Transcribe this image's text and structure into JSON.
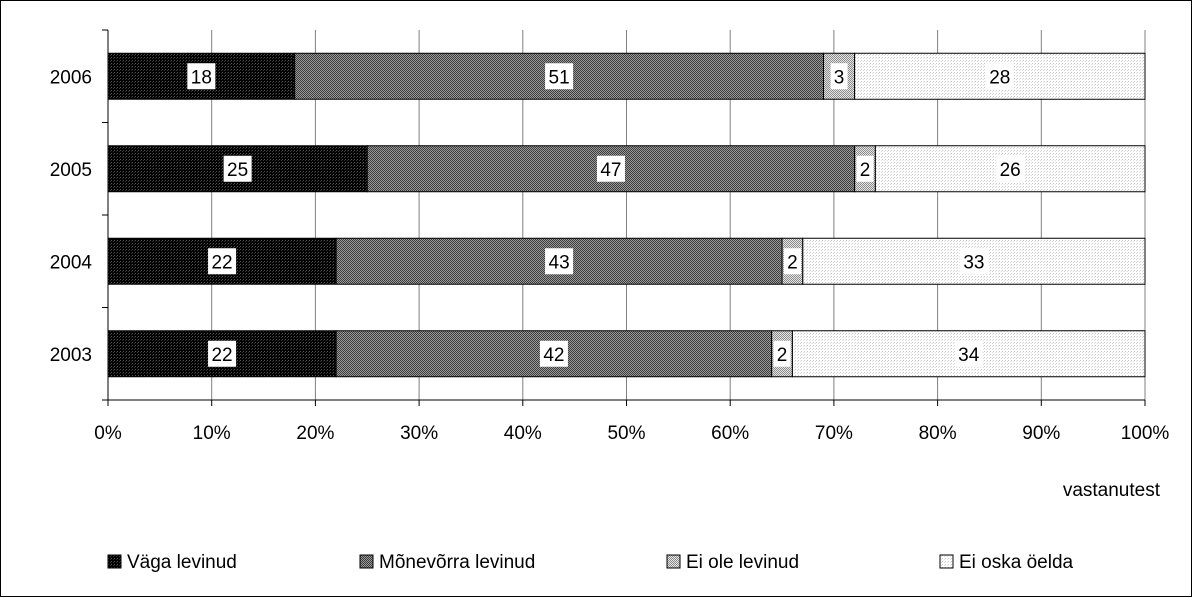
{
  "chart_data": {
    "type": "bar",
    "orientation": "horizontal",
    "stacked": true,
    "percent_stacked": true,
    "categories": [
      "2006",
      "2005",
      "2004",
      "2003"
    ],
    "series": [
      {
        "name": "Väga levinud",
        "values": [
          18,
          25,
          22,
          22
        ],
        "color": "#111111",
        "pattern": "dense-dark"
      },
      {
        "name": "Mõnevõrra levinud",
        "values": [
          51,
          47,
          43,
          42
        ],
        "color": "#7f7f7f",
        "pattern": "dot-grey"
      },
      {
        "name": "Ei ole levinud",
        "values": [
          3,
          2,
          2,
          2
        ],
        "color": "#bfbfbf",
        "pattern": "dot-light"
      },
      {
        "name": "Ei oska öelda",
        "values": [
          28,
          26,
          33,
          34
        ],
        "color": "#f0f0f0",
        "pattern": "dot-faint"
      }
    ],
    "x_ticks": [
      "0%",
      "10%",
      "20%",
      "30%",
      "40%",
      "50%",
      "60%",
      "70%",
      "80%",
      "90%",
      "100%"
    ],
    "xlim": [
      0,
      100
    ],
    "xlabel": "vastanutest",
    "grid": true,
    "legend": "bottom"
  }
}
